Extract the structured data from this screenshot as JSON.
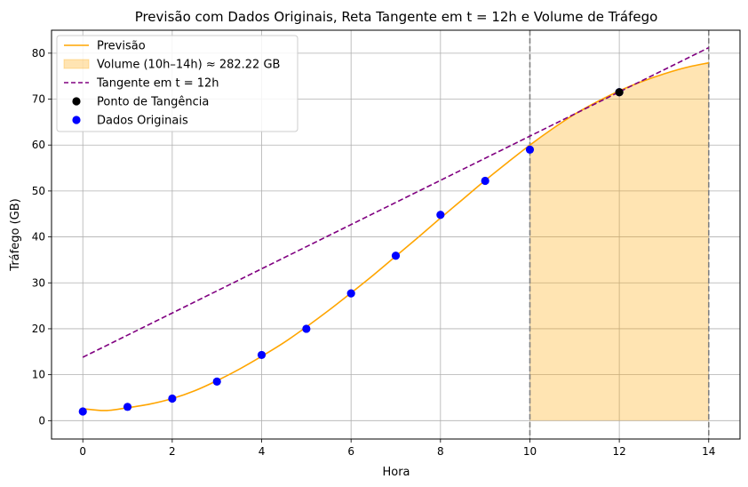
{
  "chart_data": {
    "type": "line",
    "title": "Previsão com Dados Originais, Reta Tangente em t = 12h e Volume de Tráfego",
    "xlabel": "Hora",
    "ylabel": "Tráfego (GB)",
    "xlim": [
      -0.7,
      14.7
    ],
    "ylim": [
      -4,
      85
    ],
    "xticks": [
      0,
      2,
      4,
      6,
      8,
      10,
      12,
      14
    ],
    "yticks": [
      0,
      10,
      20,
      30,
      40,
      50,
      60,
      70,
      80
    ],
    "grid": true,
    "legend_position": "top-left",
    "legend": [
      {
        "label": "Previsão",
        "kind": "line",
        "color": "#ffa500"
      },
      {
        "label": "Volume (10h–14h) ≈ 282.22 GB",
        "kind": "area",
        "color": "#ffa500"
      },
      {
        "label": "Tangente em t = 12h",
        "kind": "dashed-line",
        "color": "#800080"
      },
      {
        "label": "Ponto de Tangência",
        "kind": "marker",
        "color": "#000000"
      },
      {
        "label": "Dados Originais",
        "kind": "marker",
        "color": "#0000ff"
      }
    ],
    "series": [
      {
        "name": "Previsão",
        "type": "line",
        "color": "#ffa500",
        "x": [
          0,
          0.5,
          1,
          1.5,
          2,
          2.5,
          3,
          3.5,
          4,
          4.5,
          5,
          5.5,
          6,
          6.5,
          7,
          7.5,
          8,
          8.5,
          9,
          9.5,
          10,
          10.5,
          11,
          11.5,
          12,
          12.5,
          13,
          13.5,
          14
        ],
        "y": [
          2.6,
          2.2,
          2.8,
          3.6,
          4.8,
          6.5,
          8.7,
          11.2,
          14.0,
          17.0,
          20.4,
          24.0,
          27.8,
          31.7,
          35.8,
          39.9,
          44.1,
          48.2,
          52.3,
          56.2,
          60.0,
          63.5,
          66.7,
          69.4,
          71.8,
          73.8,
          75.5,
          76.9,
          77.9
        ]
      },
      {
        "name": "Volume (10h–14h) ≈ 282.22 GB",
        "type": "area",
        "color": "#ffa500",
        "opacity": 0.3,
        "x_range": [
          10,
          14
        ]
      },
      {
        "name": "Tangente em t = 12h",
        "type": "line",
        "style": "dashed",
        "color": "#800080",
        "x": [
          0,
          14
        ],
        "y": [
          13.8,
          81.2
        ]
      },
      {
        "name": "Ponto de Tangência",
        "type": "scatter",
        "color": "#000000",
        "x": [
          12
        ],
        "y": [
          71.5
        ]
      },
      {
        "name": "Dados Originais",
        "type": "scatter",
        "color": "#0000ff",
        "x": [
          0,
          1,
          2,
          3,
          4,
          5,
          6,
          7,
          8,
          9,
          10,
          12
        ],
        "y": [
          2.0,
          3.0,
          4.8,
          8.5,
          14.3,
          20.0,
          27.7,
          35.9,
          44.8,
          52.2,
          59.0,
          71.5
        ]
      }
    ],
    "vlines": [
      {
        "x": 10,
        "color": "#808080",
        "style": "dashed"
      },
      {
        "x": 14,
        "color": "#808080",
        "style": "dashed"
      }
    ]
  }
}
